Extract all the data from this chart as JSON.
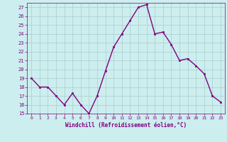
{
  "x": [
    0,
    1,
    2,
    3,
    4,
    5,
    6,
    7,
    8,
    9,
    10,
    11,
    12,
    13,
    14,
    15,
    16,
    17,
    18,
    19,
    20,
    21,
    22,
    23
  ],
  "y": [
    19,
    18,
    18,
    17,
    16,
    17.3,
    16,
    15,
    17,
    19.8,
    22.5,
    24,
    25.5,
    27,
    27.3,
    24,
    24.2,
    22.8,
    21,
    21.2,
    20.4,
    19.5,
    17,
    16.3
  ],
  "line_color": "#800080",
  "marker_color": "#800080",
  "bg_color": "#cceeee",
  "grid_color": "#aacccc",
  "xlabel": "Windchill (Refroidissement éolien,°C)",
  "xlabel_color": "#800080",
  "tick_color": "#800080",
  "ylim": [
    15,
    27.5
  ],
  "xlim": [
    -0.5,
    23.5
  ],
  "yticks": [
    15,
    16,
    17,
    18,
    19,
    20,
    21,
    22,
    23,
    24,
    25,
    26,
    27
  ],
  "xticks": [
    0,
    1,
    2,
    3,
    4,
    5,
    6,
    7,
    8,
    9,
    10,
    11,
    12,
    13,
    14,
    15,
    16,
    17,
    18,
    19,
    20,
    21,
    22,
    23
  ]
}
